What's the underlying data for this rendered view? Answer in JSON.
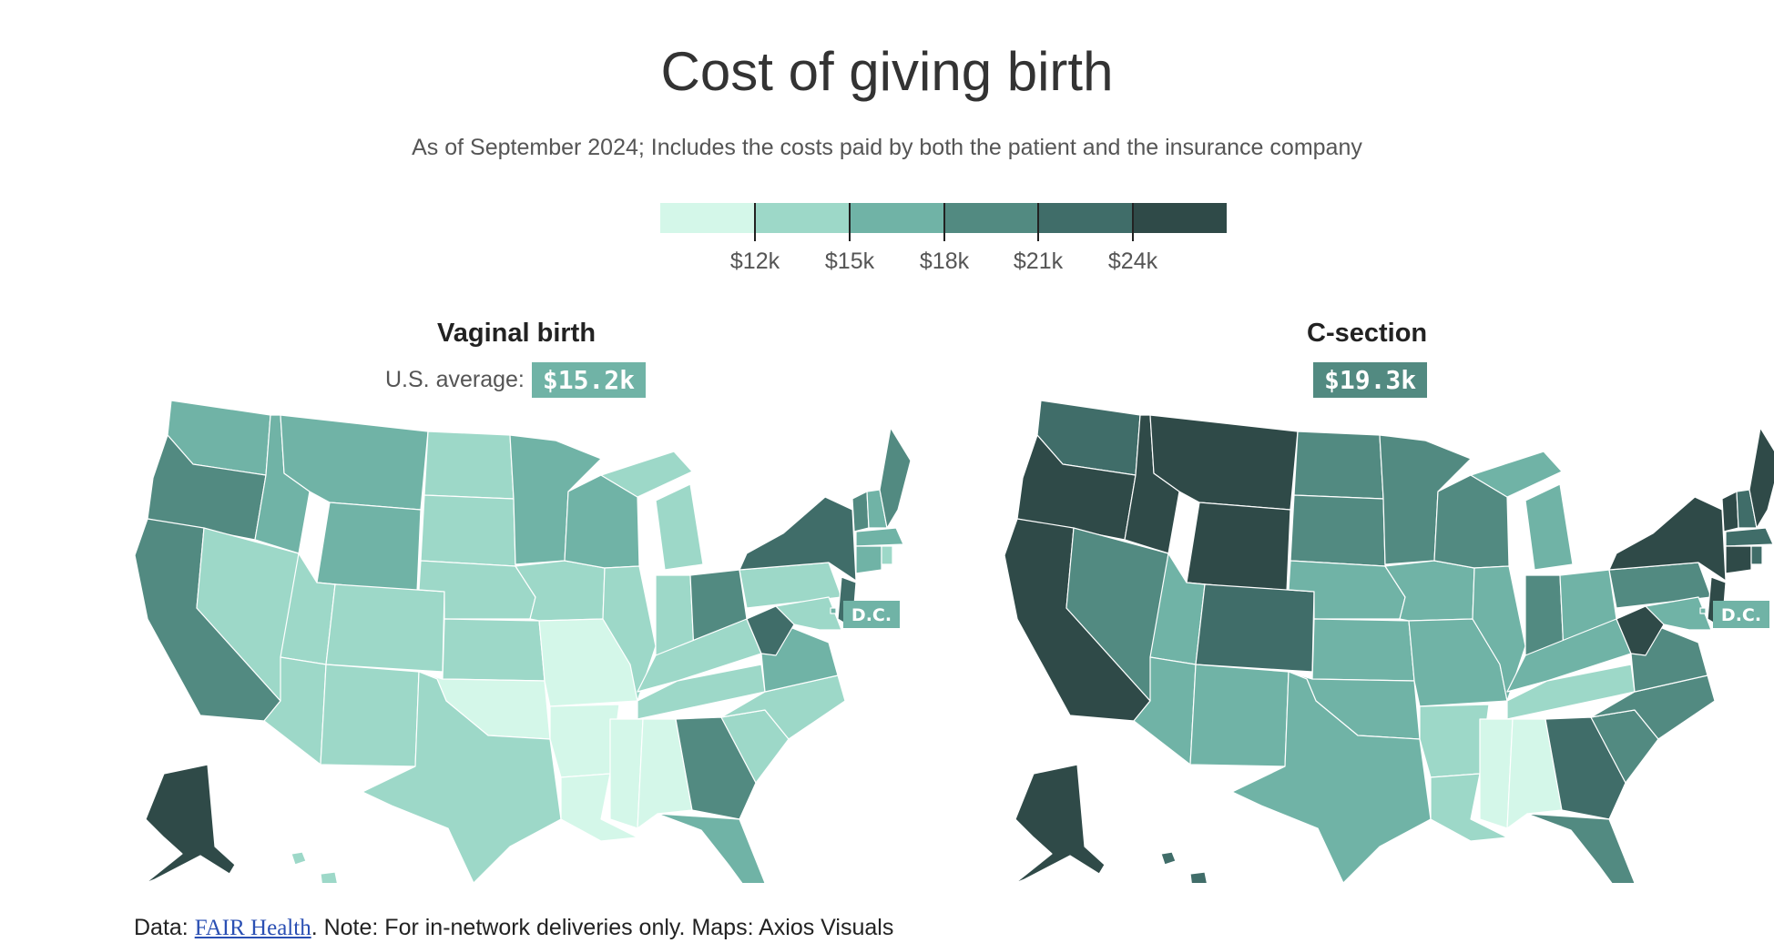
{
  "title": "Cost of giving birth",
  "subtitle": "As of September 2024; Includes the costs paid by both the patient and the insurance company",
  "legend": {
    "colors": [
      "#d4f7e9",
      "#9dd8c8",
      "#70b3a6",
      "#528a81",
      "#406d69",
      "#2f4a48"
    ],
    "ticks": [
      "$12k",
      "$15k",
      "$18k",
      "$21k",
      "$24k"
    ]
  },
  "maps": [
    {
      "title": "Vaginal birth",
      "avg_label": "U.S. average:",
      "avg_value": "$15.2k",
      "avg_color": "#70b3a6",
      "dc_label": "D.C.",
      "dc_color": "#70b3a6"
    },
    {
      "title": "C-section",
      "avg_label": "",
      "avg_value": "$19.3k",
      "avg_color": "#528a81",
      "dc_label": "D.C.",
      "dc_color": "#70b3a6"
    }
  ],
  "source": {
    "prefix": "Data: ",
    "link": "FAIR Health",
    "rest": ". Note: For in-network deliveries only. Maps: Axios Visuals"
  }
}
